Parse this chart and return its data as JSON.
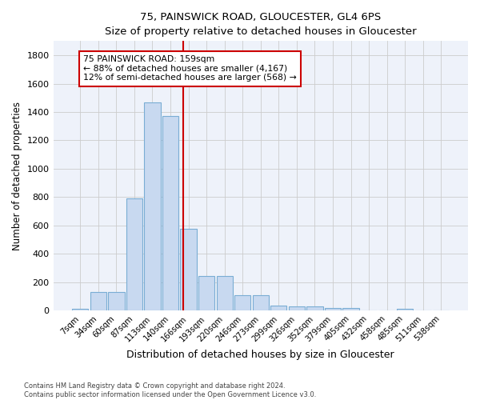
{
  "title1": "75, PAINSWICK ROAD, GLOUCESTER, GL4 6PS",
  "title2": "Size of property relative to detached houses in Gloucester",
  "xlabel": "Distribution of detached houses by size in Gloucester",
  "ylabel": "Number of detached properties",
  "bin_labels": [
    "7sqm",
    "34sqm",
    "60sqm",
    "87sqm",
    "113sqm",
    "140sqm",
    "166sqm",
    "193sqm",
    "220sqm",
    "246sqm",
    "273sqm",
    "299sqm",
    "326sqm",
    "352sqm",
    "379sqm",
    "405sqm",
    "432sqm",
    "458sqm",
    "485sqm",
    "511sqm",
    "538sqm"
  ],
  "bar_values": [
    10,
    130,
    130,
    790,
    1470,
    1370,
    575,
    245,
    245,
    110,
    110,
    35,
    30,
    30,
    20,
    20,
    0,
    0,
    15,
    0,
    0
  ],
  "bar_color": "#c8d9f0",
  "bar_edgecolor": "#7aadd4",
  "vline_x_index": 5.72,
  "vline_color": "#cc0000",
  "annotation_text": "75 PAINSWICK ROAD: 159sqm\n← 88% of detached houses are smaller (4,167)\n12% of semi-detached houses are larger (568) →",
  "annotation_box_color": "#ffffff",
  "annotation_box_edgecolor": "#cc0000",
  "ylim": [
    0,
    1900
  ],
  "yticks": [
    0,
    200,
    400,
    600,
    800,
    1000,
    1200,
    1400,
    1600,
    1800
  ],
  "footer1": "Contains HM Land Registry data © Crown copyright and database right 2024.",
  "footer2": "Contains public sector information licensed under the Open Government Licence v3.0.",
  "bg_color": "#ffffff",
  "plot_bg_color": "#eef2fa"
}
